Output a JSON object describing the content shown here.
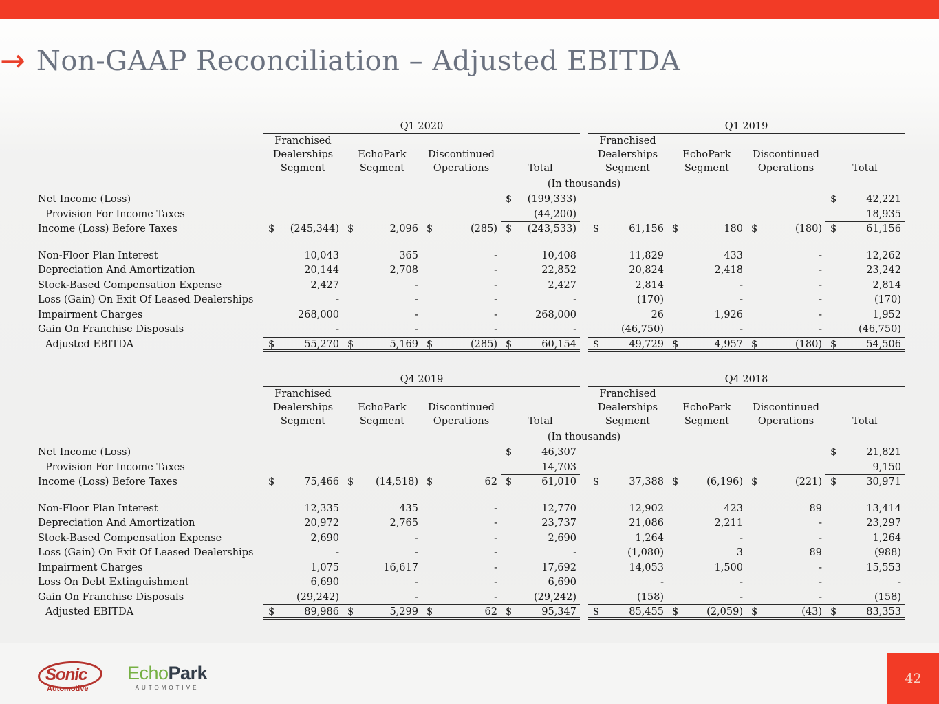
{
  "slide": {
    "title": "Non-GAAP Reconciliation – Adjusted EBITDA",
    "units_note": "(In thousands)",
    "page_number": "42"
  },
  "colors": {
    "accent_red": "#F23B26",
    "title_gray": "#6B7280",
    "sonic_red": "#B5332D",
    "echo_green": "#76B043",
    "park_dark": "#333D49",
    "page_number_text": "#F8D2C4"
  },
  "logos": {
    "sonic": {
      "name": "Sonic",
      "sub": "Automotive"
    },
    "echopark": {
      "green": "Echo",
      "dark": "Park",
      "sub": "AUTOMOTIVE"
    }
  },
  "tables": [
    {
      "groups": [
        {
          "period": "Q1 2020"
        },
        {
          "period": "Q1 2019"
        }
      ],
      "col_headers": [
        [
          "Franchised",
          "Dealerships",
          "Segment"
        ],
        [
          "EchoPark",
          "Segment"
        ],
        [
          "Discontinued",
          "Operations"
        ],
        [
          "Total"
        ]
      ],
      "rows": [
        {
          "label": "Net Income (Loss)",
          "type": "plain",
          "cells": [
            [
              "",
              ""
            ],
            [
              "",
              ""
            ],
            [
              "",
              ""
            ],
            [
              "$",
              "(199,333)"
            ],
            [
              "",
              ""
            ],
            [
              "",
              ""
            ],
            [
              "",
              ""
            ],
            [
              "$",
              "42,221"
            ]
          ]
        },
        {
          "label": "Provision For Income Taxes",
          "indent": true,
          "type": "provision",
          "cells": [
            [
              "",
              ""
            ],
            [
              "",
              ""
            ],
            [
              "",
              ""
            ],
            [
              "",
              "(44,200)"
            ],
            [
              "",
              ""
            ],
            [
              "",
              ""
            ],
            [
              "",
              ""
            ],
            [
              "",
              "18,935"
            ]
          ]
        },
        {
          "label": "Income (Loss) Before Taxes",
          "type": "plain",
          "cells": [
            [
              "$",
              "(245,344)"
            ],
            [
              "$",
              "2,096"
            ],
            [
              "$",
              "(285)"
            ],
            [
              "$",
              "(243,533)"
            ],
            [
              "$",
              "61,156"
            ],
            [
              "$",
              "180"
            ],
            [
              "$",
              "(180)"
            ],
            [
              "$",
              "61,156"
            ]
          ]
        },
        {
          "type": "spacer"
        },
        {
          "label": "Non-Floor Plan Interest",
          "type": "plain",
          "cells": [
            [
              "",
              "10,043"
            ],
            [
              "",
              "365"
            ],
            [
              "",
              "-"
            ],
            [
              "",
              "10,408"
            ],
            [
              "",
              "11,829"
            ],
            [
              "",
              "433"
            ],
            [
              "",
              "-"
            ],
            [
              "",
              "12,262"
            ]
          ]
        },
        {
          "label": "Depreciation And Amortization",
          "type": "plain",
          "cells": [
            [
              "",
              "20,144"
            ],
            [
              "",
              "2,708"
            ],
            [
              "",
              "-"
            ],
            [
              "",
              "22,852"
            ],
            [
              "",
              "20,824"
            ],
            [
              "",
              "2,418"
            ],
            [
              "",
              "-"
            ],
            [
              "",
              "23,242"
            ]
          ]
        },
        {
          "label": "Stock-Based Compensation Expense",
          "type": "plain",
          "cells": [
            [
              "",
              "2,427"
            ],
            [
              "",
              "-"
            ],
            [
              "",
              "-"
            ],
            [
              "",
              "2,427"
            ],
            [
              "",
              "2,814"
            ],
            [
              "",
              "-"
            ],
            [
              "",
              "-"
            ],
            [
              "",
              "2,814"
            ]
          ]
        },
        {
          "label": "Loss (Gain) On Exit Of Leased Dealerships",
          "type": "plain",
          "cells": [
            [
              "",
              "-"
            ],
            [
              "",
              "-"
            ],
            [
              "",
              "-"
            ],
            [
              "",
              "-"
            ],
            [
              "",
              "(170)"
            ],
            [
              "",
              "-"
            ],
            [
              "",
              "-"
            ],
            [
              "",
              "(170)"
            ]
          ]
        },
        {
          "label": "Impairment Charges",
          "type": "plain",
          "cells": [
            [
              "",
              "268,000"
            ],
            [
              "",
              "-"
            ],
            [
              "",
              "-"
            ],
            [
              "",
              "268,000"
            ],
            [
              "",
              "26"
            ],
            [
              "",
              "1,926"
            ],
            [
              "",
              "-"
            ],
            [
              "",
              "1,952"
            ]
          ]
        },
        {
          "label": "Gain On Franchise Disposals",
          "type": "pretotal",
          "cells": [
            [
              "",
              "-"
            ],
            [
              "",
              "-"
            ],
            [
              "",
              "-"
            ],
            [
              "",
              "-"
            ],
            [
              "",
              "(46,750)"
            ],
            [
              "",
              "-"
            ],
            [
              "",
              "-"
            ],
            [
              "",
              "(46,750)"
            ]
          ]
        },
        {
          "label": "Adjusted EBITDA",
          "indent": true,
          "type": "total",
          "cells": [
            [
              "$",
              "55,270"
            ],
            [
              "$",
              "5,169"
            ],
            [
              "$",
              "(285)"
            ],
            [
              "$",
              "60,154"
            ],
            [
              "$",
              "49,729"
            ],
            [
              "$",
              "4,957"
            ],
            [
              "$",
              "(180)"
            ],
            [
              "$",
              "54,506"
            ]
          ]
        }
      ]
    },
    {
      "groups": [
        {
          "period": "Q4 2019"
        },
        {
          "period": "Q4 2018"
        }
      ],
      "col_headers": [
        [
          "Franchised",
          "Dealerships",
          "Segment"
        ],
        [
          "EchoPark",
          "Segment"
        ],
        [
          "Discontinued",
          "Operations"
        ],
        [
          "Total"
        ]
      ],
      "rows": [
        {
          "label": "Net Income (Loss)",
          "type": "plain",
          "cells": [
            [
              "",
              ""
            ],
            [
              "",
              ""
            ],
            [
              "",
              ""
            ],
            [
              "$",
              "46,307"
            ],
            [
              "",
              ""
            ],
            [
              "",
              ""
            ],
            [
              "",
              ""
            ],
            [
              "$",
              "21,821"
            ]
          ]
        },
        {
          "label": "Provision For Income Taxes",
          "indent": true,
          "type": "provision",
          "cells": [
            [
              "",
              ""
            ],
            [
              "",
              ""
            ],
            [
              "",
              ""
            ],
            [
              "",
              "14,703"
            ],
            [
              "",
              ""
            ],
            [
              "",
              ""
            ],
            [
              "",
              ""
            ],
            [
              "",
              "9,150"
            ]
          ]
        },
        {
          "label": "Income (Loss) Before Taxes",
          "type": "plain",
          "cells": [
            [
              "$",
              "75,466"
            ],
            [
              "$",
              "(14,518)"
            ],
            [
              "$",
              "62"
            ],
            [
              "$",
              "61,010"
            ],
            [
              "$",
              "37,388"
            ],
            [
              "$",
              "(6,196)"
            ],
            [
              "$",
              "(221)"
            ],
            [
              "$",
              "30,971"
            ]
          ]
        },
        {
          "type": "spacer"
        },
        {
          "label": "Non-Floor Plan Interest",
          "type": "plain",
          "cells": [
            [
              "",
              "12,335"
            ],
            [
              "",
              "435"
            ],
            [
              "",
              "-"
            ],
            [
              "",
              "12,770"
            ],
            [
              "",
              "12,902"
            ],
            [
              "",
              "423"
            ],
            [
              "",
              "89"
            ],
            [
              "",
              "13,414"
            ]
          ]
        },
        {
          "label": "Depreciation And Amortization",
          "type": "plain",
          "cells": [
            [
              "",
              "20,972"
            ],
            [
              "",
              "2,765"
            ],
            [
              "",
              "-"
            ],
            [
              "",
              "23,737"
            ],
            [
              "",
              "21,086"
            ],
            [
              "",
              "2,211"
            ],
            [
              "",
              "-"
            ],
            [
              "",
              "23,297"
            ]
          ]
        },
        {
          "label": "Stock-Based Compensation Expense",
          "type": "plain",
          "cells": [
            [
              "",
              "2,690"
            ],
            [
              "",
              "-"
            ],
            [
              "",
              "-"
            ],
            [
              "",
              "2,690"
            ],
            [
              "",
              "1,264"
            ],
            [
              "",
              "-"
            ],
            [
              "",
              "-"
            ],
            [
              "",
              "1,264"
            ]
          ]
        },
        {
          "label": "Loss (Gain) On Exit Of Leased Dealerships",
          "type": "plain",
          "cells": [
            [
              "",
              "-"
            ],
            [
              "",
              "-"
            ],
            [
              "",
              "-"
            ],
            [
              "",
              "-"
            ],
            [
              "",
              "(1,080)"
            ],
            [
              "",
              "3"
            ],
            [
              "",
              "89"
            ],
            [
              "",
              "(988)"
            ]
          ]
        },
        {
          "label": "Impairment Charges",
          "type": "plain",
          "cells": [
            [
              "",
              "1,075"
            ],
            [
              "",
              "16,617"
            ],
            [
              "",
              "-"
            ],
            [
              "",
              "17,692"
            ],
            [
              "",
              "14,053"
            ],
            [
              "",
              "1,500"
            ],
            [
              "",
              "-"
            ],
            [
              "",
              "15,553"
            ]
          ]
        },
        {
          "label": "Loss On Debt Extinguishment",
          "type": "plain",
          "cells": [
            [
              "",
              "6,690"
            ],
            [
              "",
              "-"
            ],
            [
              "",
              "-"
            ],
            [
              "",
              "6,690"
            ],
            [
              "",
              "-"
            ],
            [
              "",
              "-"
            ],
            [
              "",
              "-"
            ],
            [
              "",
              "-"
            ]
          ]
        },
        {
          "label": "Gain On Franchise Disposals",
          "type": "pretotal",
          "cells": [
            [
              "",
              "(29,242)"
            ],
            [
              "",
              "-"
            ],
            [
              "",
              "-"
            ],
            [
              "",
              "(29,242)"
            ],
            [
              "",
              "(158)"
            ],
            [
              "",
              "-"
            ],
            [
              "",
              "-"
            ],
            [
              "",
              "(158)"
            ]
          ]
        },
        {
          "label": "Adjusted EBITDA",
          "indent": true,
          "type": "total",
          "cells": [
            [
              "$",
              "89,986"
            ],
            [
              "$",
              "5,299"
            ],
            [
              "$",
              "62"
            ],
            [
              "$",
              "95,347"
            ],
            [
              "$",
              "85,455"
            ],
            [
              "$",
              "(2,059)"
            ],
            [
              "$",
              "(43)"
            ],
            [
              "$",
              "83,353"
            ]
          ]
        }
      ]
    }
  ]
}
